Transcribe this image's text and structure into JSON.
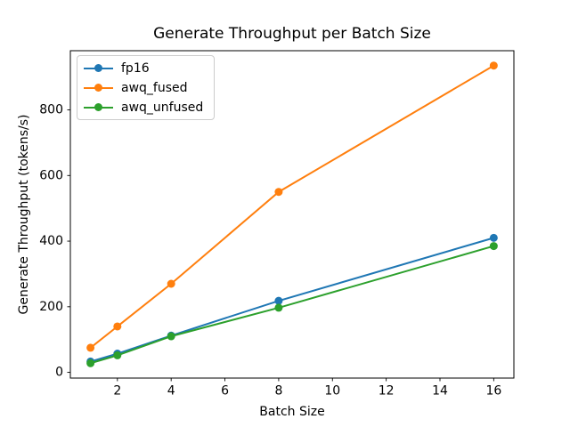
{
  "chart_data": {
    "type": "line",
    "title": "Generate Throughput per Batch Size",
    "xlabel": "Batch Size",
    "ylabel": "Generate Throughput (tokens/s)",
    "x": [
      1,
      2,
      4,
      8,
      16
    ],
    "series": [
      {
        "name": "fp16",
        "color": "#1f77b4",
        "values": [
          33,
          57,
          112,
          218,
          410
        ]
      },
      {
        "name": "awq_fused",
        "color": "#ff7f0e",
        "values": [
          75,
          140,
          270,
          550,
          935
        ]
      },
      {
        "name": "awq_unfused",
        "color": "#2ca02c",
        "values": [
          28,
          52,
          110,
          197,
          385
        ]
      }
    ],
    "xticks": [
      2,
      4,
      6,
      8,
      10,
      12,
      14,
      16
    ],
    "yticks": [
      0,
      200,
      400,
      600,
      800
    ],
    "xlim": [
      0.25,
      16.75
    ],
    "ylim": [
      -17.4,
      980.4
    ],
    "grid": false,
    "legend_position": "upper left",
    "marker": "circle",
    "axis_color": "#000000",
    "text_color": "#000000",
    "background_color": "#ffffff"
  }
}
